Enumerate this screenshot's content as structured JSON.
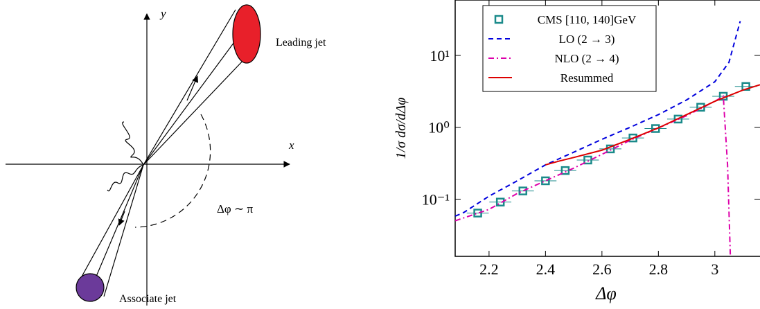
{
  "diagram": {
    "y_axis": "y",
    "x_axis": "x",
    "leading_jet": "Leading jet",
    "associate_jet": "Associate jet",
    "angle": "Δφ ∼ π"
  },
  "chart_data": {
    "type": "line",
    "xlabel": "Δφ",
    "ylabel": "1/σ dσ/dΔφ",
    "yscale": "log",
    "xlim": [
      2.08,
      3.16
    ],
    "ylim": [
      0.016,
      59
    ],
    "xticks": [
      2.2,
      2.4,
      2.6,
      2.8,
      {
        "value": 3.0,
        "label": "3"
      }
    ],
    "yticks": [
      {
        "value": 0.1,
        "label": "10⁻¹"
      },
      {
        "value": 1,
        "label": "10⁰"
      },
      {
        "value": 10,
        "label": "10¹"
      }
    ],
    "legend": "upper left",
    "series": [
      {
        "name": "CMS [110, 140]GeV",
        "color": "#1a8a8a",
        "style": "markers",
        "xerr": 0.039,
        "x": [
          2.16,
          2.24,
          2.32,
          2.4,
          2.47,
          2.55,
          2.63,
          2.71,
          2.79,
          2.87,
          2.95,
          3.03,
          3.11
        ],
        "values": [
          0.064,
          0.091,
          0.13,
          0.18,
          0.25,
          0.35,
          0.5,
          0.71,
          0.96,
          1.3,
          1.9,
          2.7,
          3.7
        ]
      },
      {
        "name": "LO (2 → 3)",
        "color": "#0000dd",
        "style": "dashed",
        "x": [
          2.08,
          2.11,
          2.2,
          2.3,
          2.4,
          2.5,
          2.6,
          2.7,
          2.8,
          2.9,
          3.0,
          3.05,
          3.09
        ],
        "values": [
          0.058,
          0.065,
          0.11,
          0.18,
          0.3,
          0.45,
          0.68,
          1.0,
          1.5,
          2.4,
          4.3,
          8,
          30
        ]
      },
      {
        "name": "NLO (2 → 4)",
        "color": "#dd00aa",
        "style": "dashdot",
        "x": [
          2.08,
          2.2,
          2.3,
          2.4,
          2.5,
          2.6,
          2.7,
          2.8,
          2.9,
          3.0,
          3.03,
          3.045,
          3.055
        ],
        "values": [
          0.05,
          0.072,
          0.12,
          0.18,
          0.27,
          0.42,
          0.66,
          0.98,
          1.45,
          2.3,
          2.7,
          0.3,
          0.016
        ]
      },
      {
        "name": "Resummed",
        "color": "#dd0000",
        "style": "solid",
        "x": [
          2.4,
          2.45,
          2.5,
          2.6,
          2.7,
          2.8,
          2.9,
          3.0,
          3.1,
          3.16
        ],
        "values": [
          0.3,
          0.34,
          0.38,
          0.48,
          0.68,
          0.98,
          1.5,
          2.3,
          3.3,
          3.9
        ]
      }
    ]
  }
}
